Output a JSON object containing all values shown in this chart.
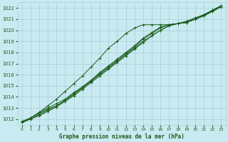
{
  "title": "Graphe pression niveau de la mer (hPa)",
  "background_color": "#c8eaf0",
  "grid_color": "#a8ccd8",
  "line_color": "#1a5c1a",
  "xlim": [
    -0.5,
    23.5
  ],
  "ylim": [
    1011.5,
    1022.5
  ],
  "yticks": [
    1012,
    1013,
    1014,
    1015,
    1016,
    1017,
    1018,
    1019,
    1020,
    1021,
    1022
  ],
  "xticks": [
    0,
    1,
    2,
    3,
    4,
    5,
    6,
    7,
    8,
    9,
    10,
    11,
    12,
    13,
    14,
    15,
    16,
    17,
    18,
    19,
    20,
    21,
    22,
    23
  ],
  "series": [
    [
      1011.7,
      1012.1,
      1012.6,
      1013.0,
      1013.4,
      1013.8,
      1014.4,
      1014.9,
      1015.5,
      1016.1,
      1016.7,
      1017.3,
      1017.9,
      1018.5,
      1019.2,
      1019.7,
      1020.2,
      1020.5,
      1020.6,
      1020.7,
      1021.0,
      1021.3,
      1021.7,
      1022.2
    ],
    [
      1011.8,
      1012.1,
      1012.5,
      1012.9,
      1013.2,
      1013.7,
      1014.2,
      1014.8,
      1015.4,
      1016.0,
      1016.6,
      1017.2,
      1017.8,
      1018.4,
      1019.0,
      1019.5,
      1020.0,
      1020.4,
      1020.6,
      1020.7,
      1021.0,
      1021.3,
      1021.7,
      1022.1
    ],
    [
      1011.7,
      1012.0,
      1012.4,
      1012.8,
      1013.2,
      1013.7,
      1014.3,
      1014.9,
      1015.5,
      1016.2,
      1016.8,
      1017.4,
      1018.0,
      1018.6,
      1019.3,
      1019.8,
      1020.3,
      1020.5,
      1020.6,
      1020.7,
      1021.0,
      1021.3,
      1021.8,
      1022.2
    ],
    [
      1011.7,
      1012.0,
      1012.3,
      1012.7,
      1013.1,
      1013.6,
      1014.1,
      1014.7,
      1015.3,
      1015.9,
      1016.5,
      1017.1,
      1017.7,
      1018.3,
      1018.9,
      1019.5,
      1020.0,
      1020.4,
      1020.6,
      1020.8,
      1021.1,
      1021.4,
      1021.8,
      1022.2
    ]
  ],
  "outlier_series": [
    1011.7,
    1012.1,
    1012.6,
    1013.2,
    1013.8,
    1014.5,
    1015.2,
    1015.9,
    1016.7,
    1017.5,
    1018.4,
    1019.0,
    1019.7,
    1020.2,
    1020.5,
    1020.5,
    1020.5,
    1020.5,
    1020.6,
    1020.8,
    1021.1,
    1021.4,
    1021.8,
    1022.2
  ]
}
